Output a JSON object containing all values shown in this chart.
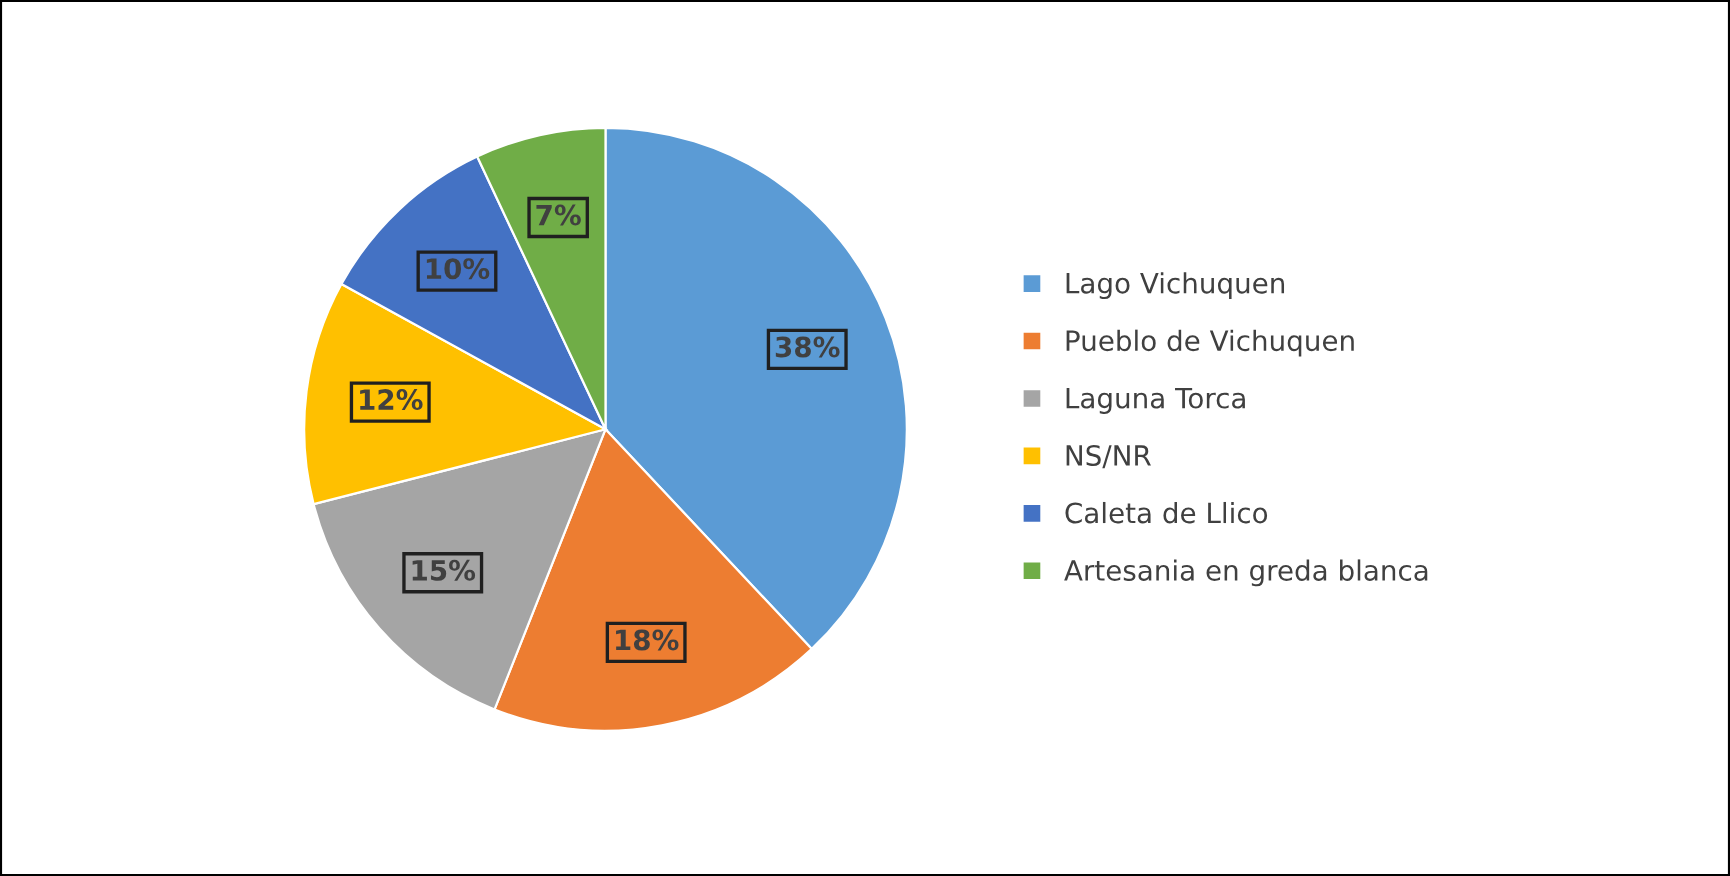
{
  "chart_data": {
    "type": "pie",
    "categories": [
      "Lago Vichuquen",
      "Pueblo de Vichuquen",
      "Laguna Torca",
      "NS/NR",
      "Caleta de Llico",
      "Artesania en greda blanca"
    ],
    "values": [
      38,
      18,
      15,
      12,
      10,
      7
    ],
    "value_labels": [
      "38%",
      "18%",
      "15%",
      "12%",
      "10%",
      "7%"
    ],
    "colors": [
      "#5b9bd5",
      "#ed7d31",
      "#a5a5a5",
      "#ffc000",
      "#4472c4",
      "#70ad47"
    ],
    "legend": "right"
  }
}
